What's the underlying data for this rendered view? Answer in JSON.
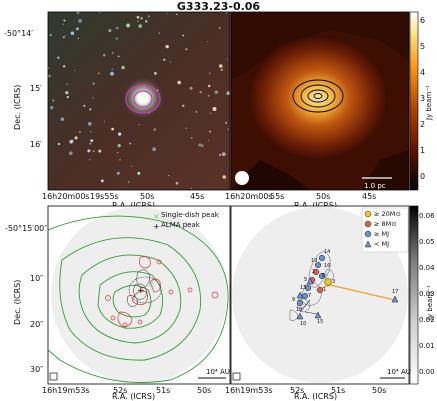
{
  "figure": {
    "title": "G333.23-0.06"
  },
  "top_left": {
    "ylabel": "Dec. (ICRS)",
    "xlabel": "R.A. (ICRS)",
    "yticks": [
      "-50°14′",
      "15′",
      "16′"
    ],
    "xticks": [
      "16h20m00s",
      "19s55s",
      "50s",
      "45s"
    ],
    "colors": {
      "background": "#3a2a22",
      "contour_magenta": "#c040c0"
    }
  },
  "top_right": {
    "xlabel": "R.A. (ICRS)",
    "xticks": [
      "16h20m00s",
      "55s",
      "50s",
      "45s"
    ],
    "scalebar": "1.0 pc",
    "colorbar": {
      "label": "Jy beam⁻¹",
      "ticks": [
        "6",
        "5",
        "4",
        "3",
        "2",
        "1",
        "0"
      ],
      "colors": [
        "#000000",
        "#5a0f00",
        "#b04000",
        "#ff9a1a",
        "#ffe38a",
        "#ffffff"
      ]
    }
  },
  "bottom_left": {
    "ylabel": "Dec. (ICRS)",
    "xlabel": "R.A. (ICRS)",
    "yticks": [
      "-50°15′00″",
      "10″",
      "20″",
      "30″"
    ],
    "xticks": [
      "16h19m53s",
      "52s",
      "51s",
      "50s"
    ],
    "legend": [
      {
        "label": "Single-dish peak",
        "marker": "×",
        "color": "#7fc97f"
      },
      {
        "label": "ALMA peak",
        "marker": "+",
        "color": "#111111"
      }
    ],
    "scalebar": "10⁴ AU",
    "colors": {
      "contour_green": "#2ca02c",
      "contour_red": "#e03030"
    }
  },
  "bottom_right": {
    "xlabel": "R.A. (ICRS)",
    "xticks": [
      "16h19m53s",
      "52s",
      "51s",
      "50s"
    ],
    "legend": [
      {
        "label": "≥ 20M⊙",
        "color": "#f5c518",
        "shape": "circle"
      },
      {
        "label": "≥ 8M⊙",
        "color": "#e85a5a",
        "shape": "circle"
      },
      {
        "label": "≥ MJ",
        "color": "#6a8fd8",
        "shape": "circle"
      },
      {
        "label": "< MJ",
        "color": "#6a8fd8",
        "shape": "triangle"
      }
    ],
    "core_labels": [
      "14",
      "19",
      "16",
      "2",
      "8",
      "5",
      "3",
      "13",
      "17",
      "1",
      "15",
      "18",
      "9",
      "10",
      "7"
    ],
    "scalebar": "10⁴ AU",
    "colorbar": {
      "label": "Jy beam⁻¹",
      "ticks": [
        "0.06",
        "0.05",
        "0.04",
        "0.03",
        "0.02",
        "0.01",
        "0.00"
      ],
      "colors": [
        "#ffffff",
        "#cfcfcf",
        "#7a7a7a",
        "#000000"
      ]
    }
  }
}
